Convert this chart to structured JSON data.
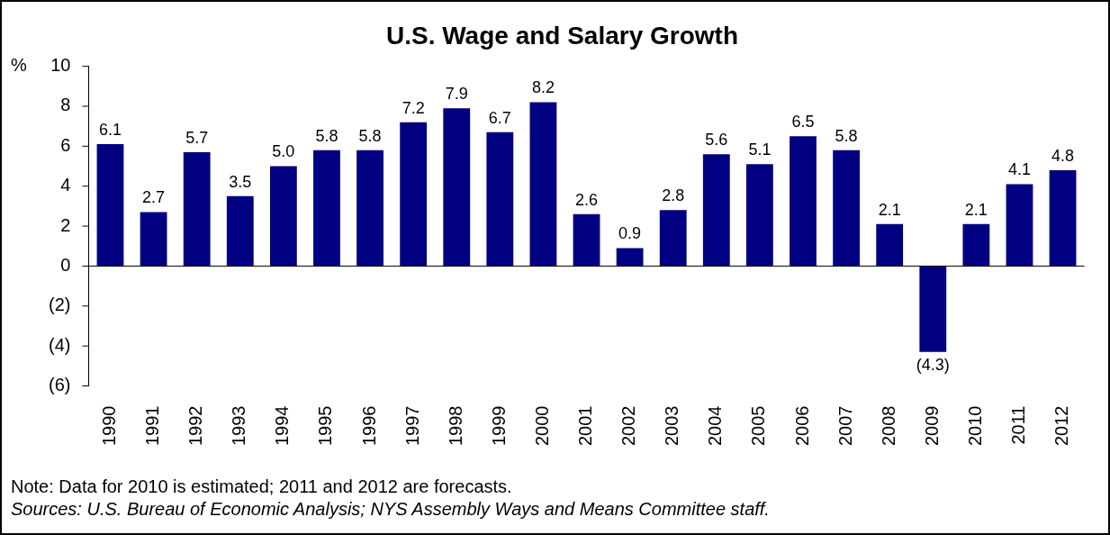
{
  "chart_data": {
    "type": "bar",
    "title": "U.S. Wage and Salary Growth",
    "ylabel": "%",
    "categories": [
      "1990",
      "1991",
      "1992",
      "1993",
      "1994",
      "1995",
      "1996",
      "1997",
      "1998",
      "1999",
      "2000",
      "2001",
      "2002",
      "2003",
      "2004",
      "2005",
      "2006",
      "2007",
      "2008",
      "2009",
      "2010",
      "2011",
      "2012"
    ],
    "values": [
      6.1,
      2.7,
      5.7,
      3.5,
      5.0,
      5.8,
      5.8,
      7.2,
      7.9,
      6.7,
      8.2,
      2.6,
      0.9,
      2.8,
      5.6,
      5.1,
      6.5,
      5.8,
      2.1,
      -4.3,
      2.1,
      4.1,
      4.8
    ],
    "value_labels": [
      "6.1",
      "2.7",
      "5.7",
      "3.5",
      "5.0",
      "5.8",
      "5.8",
      "7.2",
      "7.9",
      "6.7",
      "8.2",
      "2.6",
      "0.9",
      "2.8",
      "5.6",
      "5.1",
      "6.5",
      "5.8",
      "2.1",
      "(4.3)",
      "2.1",
      "4.1",
      "4.8"
    ],
    "color": "#000080",
    "ylim": [
      -6,
      10
    ],
    "yticks": [
      {
        "value": -6,
        "label": "(6)"
      },
      {
        "value": -4,
        "label": "(4)"
      },
      {
        "value": -2,
        "label": "(2)"
      },
      0,
      2,
      4,
      6,
      8,
      10
    ],
    "legend": false,
    "annotations": [
      "Note: Data for 2010 is estimated; 2011 and 2012 are forecasts.",
      "Sources: U.S. Bureau of Economic Analysis; NYS Assembly Ways and Means Committee staff."
    ]
  }
}
